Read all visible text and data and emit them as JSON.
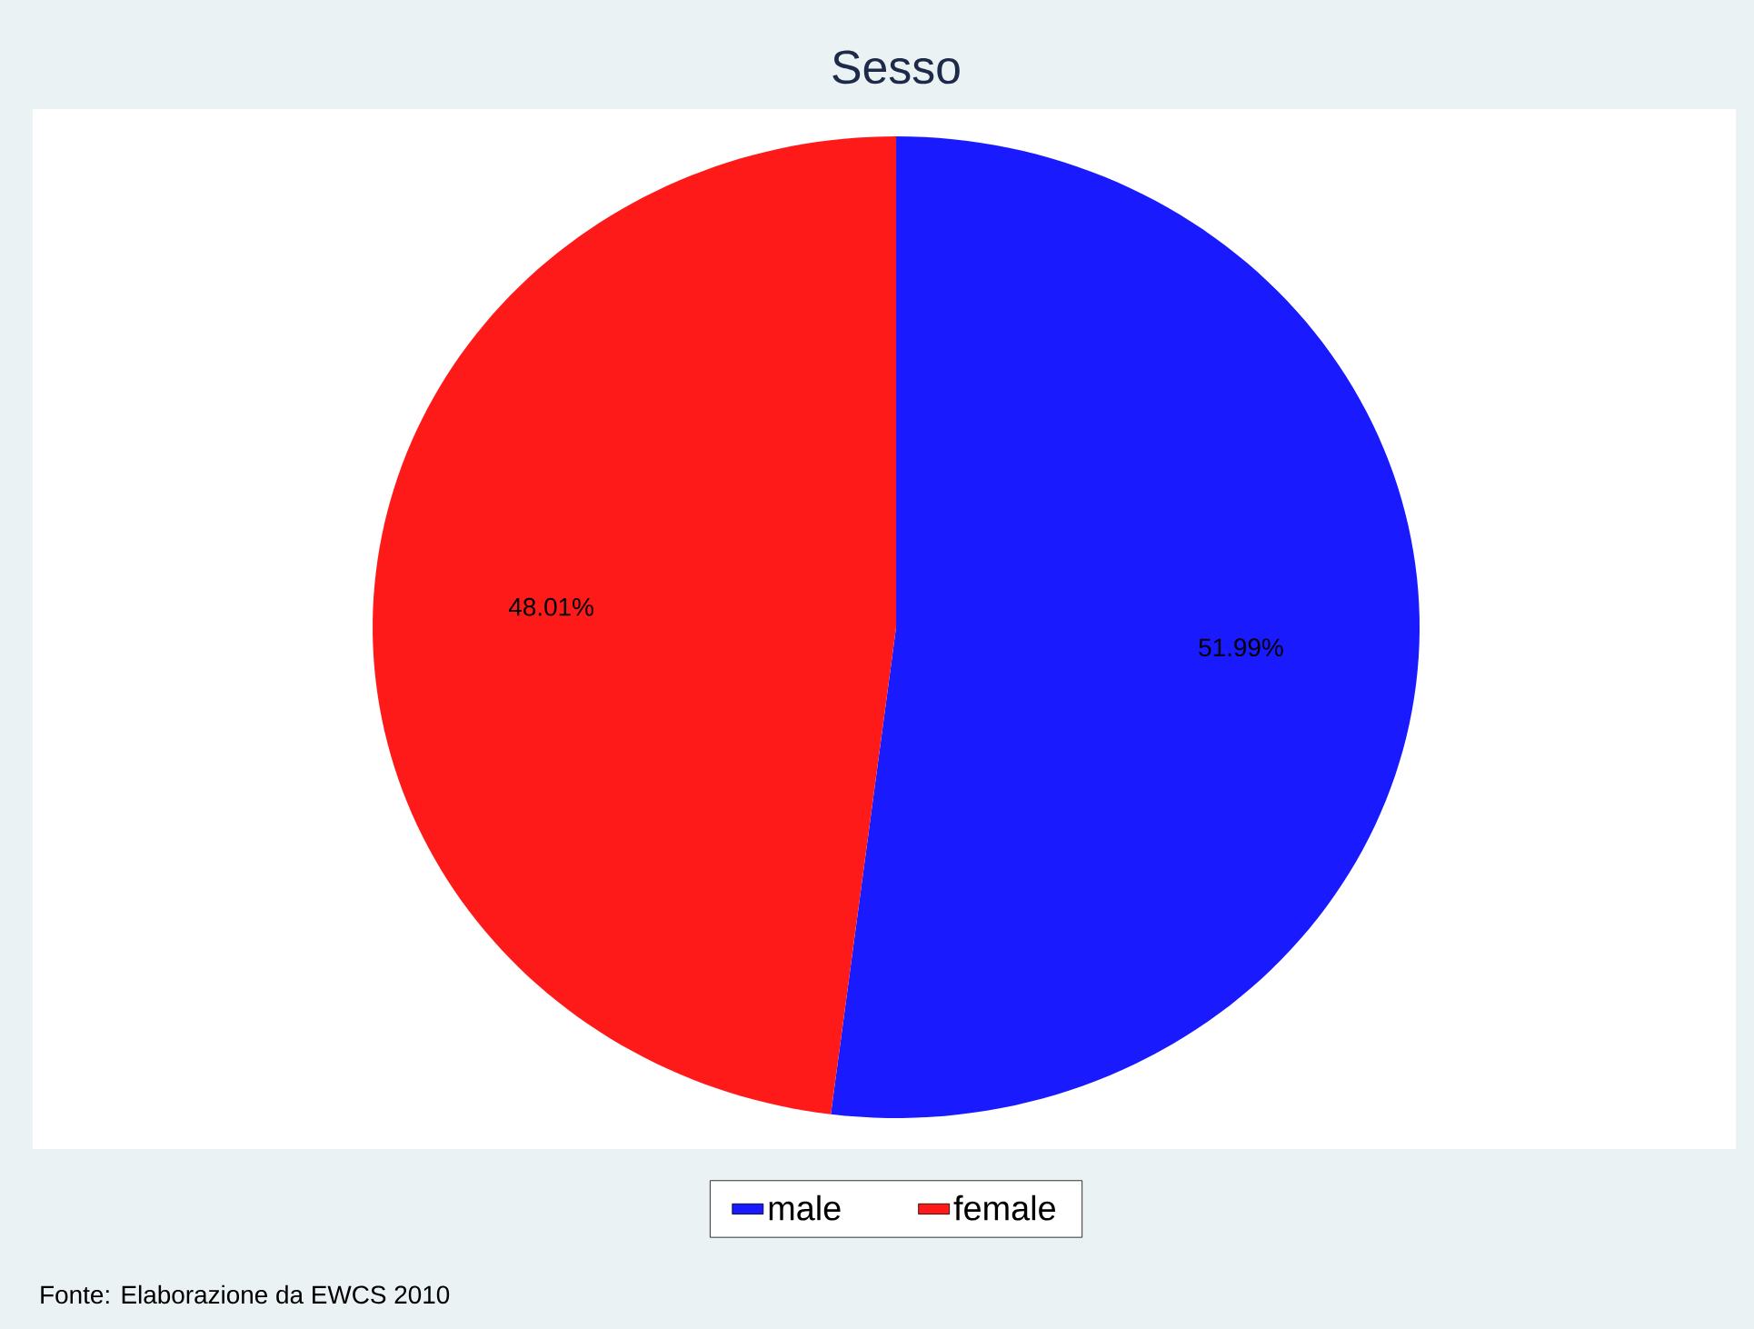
{
  "chart_data": {
    "type": "pie",
    "title": "Sesso",
    "categories": [
      "male",
      "female"
    ],
    "values": [
      51.99,
      48.01
    ],
    "value_labels": [
      "51.99%",
      "48.01%"
    ],
    "colors": [
      "#1a1aff",
      "#ff1a1a"
    ],
    "legend": "bottom",
    "annotations": [
      "Fonte: Elaborazione da EWCS 2010"
    ]
  }
}
